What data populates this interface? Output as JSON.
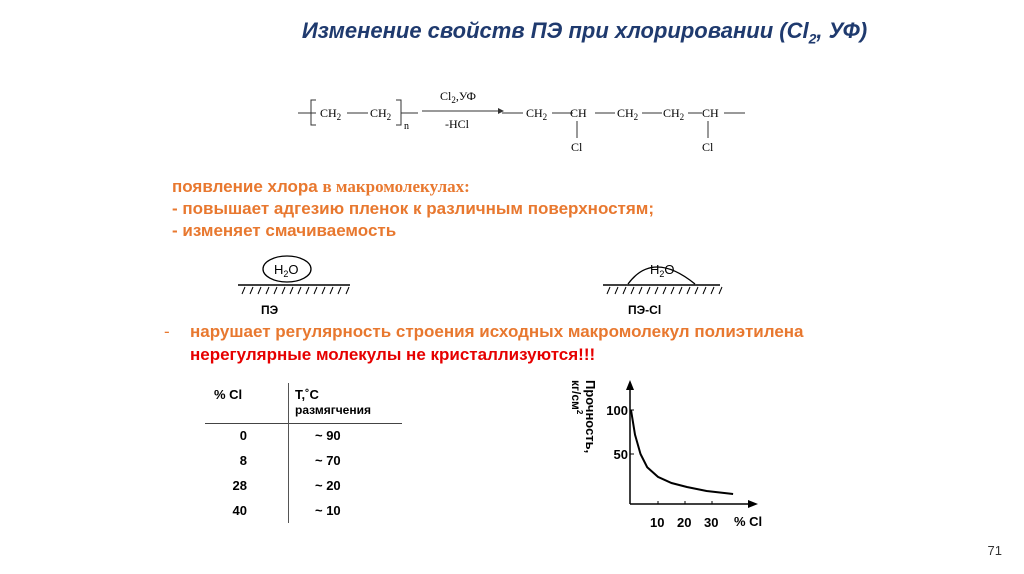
{
  "title": {
    "main": "Изменение свойств ПЭ при хлорировании (Cl",
    "sub": "2",
    "tail": ", УФ)"
  },
  "reaction": {
    "reactant_units": [
      "CH2",
      "CH2"
    ],
    "repeat_index": "n",
    "reagent_top": "Cl2,УФ",
    "reagent_bottom": "-HCl",
    "product_chain": [
      "CH2",
      "CH",
      "CH2",
      "CH2",
      "CH"
    ],
    "substituent": "Cl"
  },
  "effects": {
    "heading_a": "появление хлора ",
    "heading_b": "в макромолекулах:",
    "item1": "- повышает адгезию пленок к различным поверхностям;",
    "item2": "- изменяет смачиваемость"
  },
  "wetting": {
    "drop_label": "H2O",
    "left_label": "ПЭ",
    "right_label": "ПЭ-Cl"
  },
  "regularity": {
    "bullet": "-",
    "text": "нарушает регулярность строения исходных макромолекул полиэтилена",
    "conclusion": "нерегулярные молекулы не кристаллизуются!!!"
  },
  "table": {
    "headers": [
      "% Cl",
      "T,˚C",
      "размягчения"
    ],
    "rows": [
      [
        "0",
        "~ 90"
      ],
      [
        "8",
        "~ 70"
      ],
      [
        "28",
        "~ 20"
      ],
      [
        "40",
        "~ 10"
      ]
    ]
  },
  "chart_data": {
    "type": "line",
    "ylabel": "Прочность, кг/см²",
    "xlabel": "% Cl",
    "x_ticks": [
      "10",
      "20",
      "30"
    ],
    "y_ticks": [
      "50",
      "100"
    ],
    "xlim": [
      0,
      40
    ],
    "ylim": [
      0,
      120
    ],
    "grid": false,
    "series": [
      {
        "x": [
          0,
          1.5,
          3.5,
          6,
          10,
          15,
          20.7,
          28,
          37.8
        ],
        "y": [
          100,
          72,
          50,
          35,
          24,
          17,
          12.5,
          8,
          4.5
        ]
      }
    ]
  },
  "page_number": "71",
  "colors": {
    "title": "#1f3a6e",
    "orange": "#e8782f",
    "red": "#e60000"
  }
}
